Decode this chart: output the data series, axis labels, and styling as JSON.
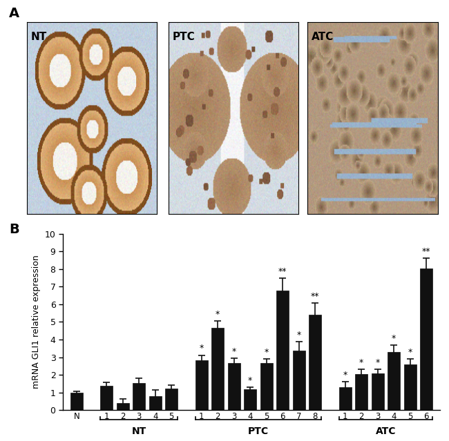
{
  "bar_values": [
    1.0,
    1.38,
    0.4,
    1.55,
    0.8,
    1.22,
    2.82,
    4.65,
    2.68,
    1.17,
    2.67,
    6.78,
    3.38,
    5.42,
    1.32,
    2.05,
    2.08,
    3.28,
    2.6,
    8.05
  ],
  "bar_errors": [
    0.08,
    0.2,
    0.25,
    0.25,
    0.35,
    0.18,
    0.3,
    0.4,
    0.25,
    0.12,
    0.22,
    0.72,
    0.5,
    0.65,
    0.28,
    0.28,
    0.22,
    0.42,
    0.3,
    0.55
  ],
  "tick_labels": [
    "N",
    "1",
    "2",
    "3",
    "4",
    "5",
    "1",
    "2",
    "3",
    "4",
    "5",
    "6",
    "7",
    "8",
    "1",
    "2",
    "3",
    "4",
    "5",
    "6"
  ],
  "significance": [
    "",
    "",
    "",
    "",
    "",
    "",
    "*",
    "*",
    "*",
    "*",
    "*",
    "**",
    "*",
    "**",
    "*",
    "*",
    "*",
    "*",
    "*",
    "**"
  ],
  "ylabel": "mRNA GLI1 relative expression",
  "ylim": [
    0,
    10
  ],
  "yticks": [
    0,
    1,
    2,
    3,
    4,
    5,
    6,
    7,
    8,
    9,
    10
  ],
  "bar_color": "#111111",
  "error_color": "#111111",
  "background_color": "#ffffff",
  "panel_label_A": "A",
  "panel_label_B": "B",
  "image_labels": [
    "NT",
    "PTC",
    "ATC"
  ],
  "img_bg_nt": [
    0.75,
    0.82,
    0.88
  ],
  "img_bg_ptc": [
    0.82,
    0.85,
    0.88
  ],
  "img_bg_atc": [
    0.78,
    0.83,
    0.86
  ]
}
